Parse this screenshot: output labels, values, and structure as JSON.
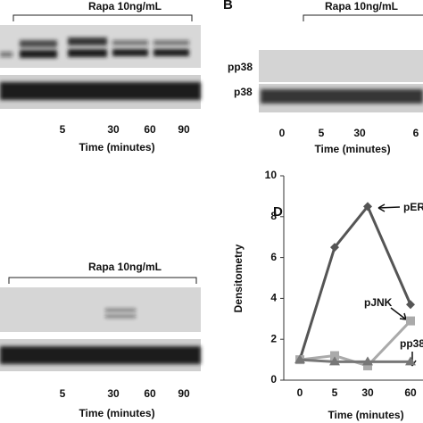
{
  "panels": {
    "A": {
      "treatment": "Rapa 10ng/mL",
      "xticks": [
        "5",
        "30",
        "60",
        "90"
      ],
      "xlabel": "Time (minutes)"
    },
    "B": {
      "label": "B",
      "treatment": "Rapa 10ng/mL",
      "rows": [
        "pp38",
        "p38"
      ],
      "xticks": [
        "0",
        "5",
        "30",
        "6"
      ],
      "xlabel": "Time (minutes)"
    },
    "C": {
      "treatment": "Rapa 10ng/mL",
      "xticks": [
        "5",
        "30",
        "60",
        "90"
      ],
      "xlabel": "Time (minutes)"
    }
  },
  "chart_data": {
    "type": "line",
    "panel_label": "D",
    "ylabel": "Densitometry",
    "xlabel": "Time (minutes)",
    "categories": [
      "0",
      "5",
      "30",
      "60"
    ],
    "ylim": [
      0,
      10
    ],
    "yticks": [
      0,
      2,
      4,
      6,
      8,
      10
    ],
    "series": [
      {
        "name": "pER",
        "color": "#555555",
        "marker": "diamond",
        "values": [
          1,
          6.5,
          8.5,
          3.7
        ]
      },
      {
        "name": "pJNK",
        "color": "#aaaaaa",
        "marker": "square",
        "values": [
          1,
          1.2,
          0.7,
          2.9
        ]
      },
      {
        "name": "pp38",
        "color": "#777777",
        "marker": "triangle",
        "values": [
          1,
          0.9,
          0.9,
          0.9
        ]
      }
    ]
  }
}
